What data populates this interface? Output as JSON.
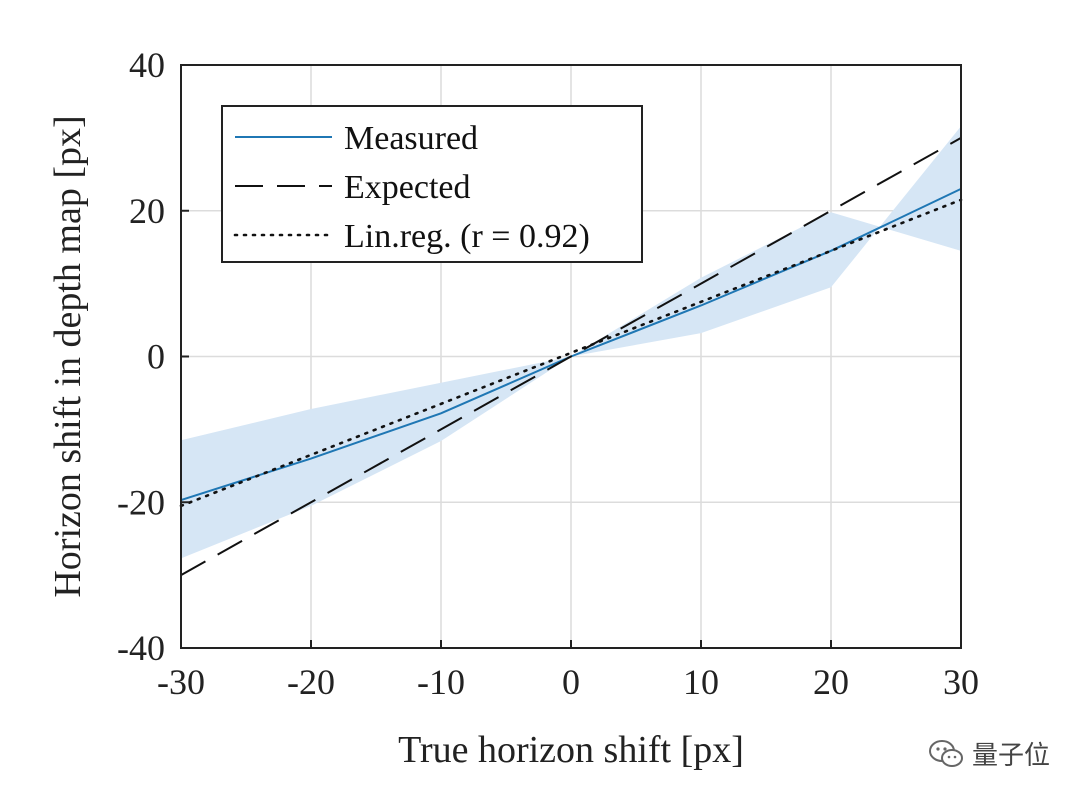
{
  "chart_data": {
    "type": "line",
    "xlabel": "True horizon shift [px]",
    "ylabel": "Horizon shift in depth map [px]",
    "xlim": [
      -30,
      30
    ],
    "ylim": [
      -40,
      40
    ],
    "xticks": [
      -30,
      -20,
      -10,
      0,
      10,
      20,
      30
    ],
    "yticks": [
      -40,
      -20,
      0,
      20,
      40
    ],
    "xtick_labels": [
      "-30",
      "-20",
      "-10",
      "0",
      "10",
      "20",
      "30"
    ],
    "ytick_labels": [
      "-40",
      "-20",
      "0",
      "20",
      "40"
    ],
    "grid": true,
    "legend_position": "top-left",
    "series": [
      {
        "name": "Measured",
        "style": "solid",
        "color": "#1f77b4",
        "x": [
          -30,
          -20,
          -10,
          0,
          10,
          20,
          30
        ],
        "y": [
          -19.7,
          -14,
          -7.8,
          0,
          7.0,
          14.5,
          23.0
        ],
        "band_upper": [
          -11.5,
          -7.2,
          -3.6,
          0,
          3.2,
          9.5,
          31.6
        ],
        "band_lower": [
          -27.7,
          -20.5,
          -11.6,
          0,
          10.8,
          19.8,
          14.5
        ]
      },
      {
        "name": "Expected",
        "style": "dashed",
        "color": "#111111",
        "x": [
          -30,
          30
        ],
        "y": [
          -30,
          30
        ]
      },
      {
        "name": "Lin.reg. (r = 0.92)",
        "style": "dotted",
        "color": "#111111",
        "x": [
          -30,
          30
        ],
        "y": [
          -20.5,
          21.5
        ]
      }
    ],
    "band_color": "#d6e6f5"
  },
  "watermark": {
    "text": "量子位",
    "icon": "wechat-icon"
  }
}
